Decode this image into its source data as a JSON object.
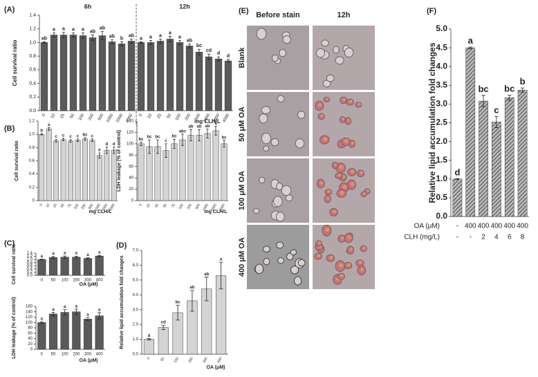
{
  "chart_data": [
    {
      "type": "bar",
      "panel": "(A)",
      "group_labels": [
        "6h",
        "12h"
      ],
      "ylabel": "Cell survival ratio",
      "xlabel": "mg CLH/L",
      "color": "#5a5a5a",
      "categories": [
        "0",
        "10",
        "25",
        "50",
        "100",
        "200",
        "500",
        "1000",
        "2000",
        "4000",
        "0",
        "10",
        "25",
        "50",
        "100",
        "200",
        "500",
        "1000",
        "2000",
        "4000"
      ],
      "values": [
        1.0,
        1.11,
        1.11,
        1.11,
        1.1,
        1.07,
        1.1,
        1.01,
        0.98,
        1.02,
        1.0,
        1.0,
        1.02,
        1.05,
        1.0,
        0.95,
        0.86,
        0.79,
        0.76,
        0.73
      ],
      "errors": [
        0.01,
        0.03,
        0.04,
        0.03,
        0.04,
        0.04,
        0.06,
        0.03,
        0.03,
        0.03,
        0.01,
        0.03,
        0.03,
        0.04,
        0.03,
        0.03,
        0.04,
        0.04,
        0.03,
        0.02
      ],
      "letters": [
        "ab",
        "a",
        "a",
        "a",
        "a",
        "ab",
        "ab",
        "ab",
        "b",
        "ab",
        "a",
        "a",
        "a",
        "a",
        "a",
        "ab",
        "bc",
        "cd",
        "d",
        "d"
      ],
      "ylim": [
        0,
        1.4
      ],
      "yticks": [
        {
          "value": 0,
          "label": "0.0"
        },
        0.2,
        0.4,
        0.6,
        0.8,
        {
          "value": 1,
          "label": "1.0"
        },
        1.2,
        1.4
      ]
    },
    {
      "type": "bar",
      "panel": "(B)",
      "ylabel": "Cell survival ratio",
      "xlabel": "mg CLH/L",
      "color": "#d4d4d4",
      "categories": [
        "0",
        "10",
        "25",
        "50",
        "75",
        "100",
        "200",
        "500",
        "1000",
        "2000",
        "4000"
      ],
      "values": [
        1.0,
        1.08,
        0.9,
        0.92,
        0.9,
        0.91,
        0.93,
        0.91,
        0.68,
        0.76,
        0.76
      ],
      "errors": [
        0.01,
        0.02,
        0.02,
        0.02,
        0.02,
        0.02,
        0.02,
        0.02,
        0.04,
        0.05,
        0.05
      ],
      "letters": [
        "b",
        "a",
        "c",
        "c",
        "c",
        "c",
        "bc",
        "c",
        "e",
        "d",
        "d"
      ],
      "ylim": [
        0,
        1.2
      ],
      "yticks": [
        0,
        0.2,
        0.4,
        0.6,
        0.8,
        {
          "value": 1,
          "label": "1.0"
        },
        1.2
      ]
    },
    {
      "type": "bar",
      "ylabel": "LDH leakage (% of control)",
      "xlabel": "mg CLH/L",
      "color": "#d4d4d4",
      "categories": [
        "0",
        "10",
        "25",
        "50",
        "75",
        "100",
        "200",
        "500",
        "1000",
        "2000",
        "4000"
      ],
      "values": [
        100,
        95,
        95,
        88,
        100,
        107,
        115,
        115,
        118,
        123,
        100
      ],
      "errors": [
        3,
        12,
        12,
        12,
        8,
        10,
        10,
        10,
        8,
        8,
        6
      ],
      "letters": [
        "bc",
        "bc",
        "bc",
        "c",
        "bc",
        "abc",
        "ab",
        "ab",
        "ab",
        "a",
        "bc"
      ],
      "ylim": [
        0,
        140
      ],
      "yticks": [
        0,
        20,
        40,
        60,
        80,
        100,
        120,
        140
      ]
    },
    {
      "type": "bar",
      "panel": "(C)",
      "ylabel": "Cell survival ratio",
      "xlabel": "OA (μM)",
      "color": "#5a5a5a",
      "categories": [
        "0",
        "50",
        "100",
        "200",
        "300",
        "400"
      ],
      "values": [
        1.0,
        1.13,
        1.15,
        1.15,
        1.07,
        1.22
      ],
      "errors": [
        0.02,
        0.06,
        0.07,
        0.06,
        0.04,
        0.04
      ],
      "letters": [
        "a",
        "a",
        "a",
        "a",
        "a",
        "a"
      ],
      "ylim": [
        0,
        1.4
      ],
      "yticks": [
        {
          "value": 0,
          "label": "0.0"
        },
        0.2,
        0.4,
        0.6,
        0.8,
        {
          "value": 1,
          "label": "1.0"
        },
        1.2,
        1.4
      ]
    },
    {
      "type": "bar",
      "ylabel": "LDH leakage (% of control)",
      "xlabel": "OA (μM)",
      "color": "#5a5a5a",
      "categories": [
        "0",
        "50",
        "100",
        "200",
        "300",
        "400"
      ],
      "values": [
        100,
        132,
        138,
        140,
        113,
        125
      ],
      "errors": [
        3,
        6,
        10,
        10,
        6,
        12
      ],
      "letters": [
        "a",
        "a",
        "a",
        "a",
        "a",
        "a"
      ],
      "ylim": [
        0,
        160
      ],
      "yticks": [
        0,
        20,
        40,
        60,
        80,
        100,
        120,
        140,
        160
      ]
    },
    {
      "type": "bar",
      "panel": "(D)",
      "ylabel": "Relative lipid accumulation fold changes",
      "xlabel": "OA (μM)",
      "color": "#d4d4d4",
      "categories": [
        "0",
        "50",
        "100",
        "200",
        "300",
        "400"
      ],
      "values": [
        1.0,
        1.8,
        2.8,
        3.6,
        4.4,
        5.3
      ],
      "errors": [
        0.05,
        0.15,
        0.5,
        0.7,
        0.8,
        0.9
      ],
      "letters": [
        "d",
        "cd",
        "bc",
        "ab",
        "ab",
        "a"
      ],
      "ylim": [
        0,
        7
      ],
      "yticks": [
        {
          "value": 0,
          "label": "0.0"
        },
        {
          "value": 1,
          "label": "1.0"
        },
        {
          "value": 2,
          "label": "2.0"
        },
        {
          "value": 3,
          "label": "3.0"
        },
        {
          "value": 4,
          "label": "4.0"
        },
        {
          "value": 5,
          "label": "5.0"
        },
        {
          "value": 6,
          "label": "6.0"
        },
        {
          "value": 7,
          "label": "7.0"
        }
      ]
    },
    {
      "type": "bar",
      "panel": "(F)",
      "ylabel": "Relative lipid accumulation fold changes",
      "color": "#6a6a6a",
      "category_rows": [
        {
          "name": "OA (μM)",
          "labels": [
            "-",
            "400",
            "400",
            "400",
            "400",
            "400"
          ]
        },
        {
          "name": "CLH (mg/L)",
          "labels": [
            "-",
            "-",
            "2",
            "4",
            "6",
            "8"
          ]
        }
      ],
      "values": [
        1.0,
        4.5,
        3.08,
        2.52,
        3.17,
        3.37
      ],
      "errors": [
        0.01,
        0.02,
        0.15,
        0.15,
        0.07,
        0.06
      ],
      "letters": [
        "d",
        "a",
        "bc",
        "c",
        "bc",
        "b"
      ],
      "ylim": [
        0,
        5
      ],
      "yticks": [
        {
          "value": 0,
          "label": "0.0"
        },
        0.5,
        {
          "value": 1,
          "label": "1.0"
        },
        1.5,
        {
          "value": 2,
          "label": "2.0"
        },
        2.5,
        {
          "value": 3,
          "label": "3.0"
        },
        3.5,
        {
          "value": 4,
          "label": "4.0"
        },
        4.5,
        {
          "value": 5,
          "label": "5.0"
        }
      ]
    }
  ],
  "image_panel": {
    "label": "(E)",
    "columns": [
      "Before stain",
      "12h"
    ],
    "rows": [
      "Blank",
      "50 μM OA",
      "100 μM OA",
      "400 μM OA"
    ]
  }
}
